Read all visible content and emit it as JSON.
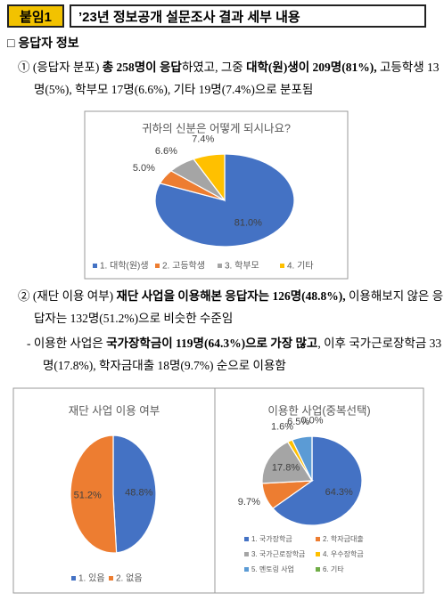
{
  "header": {
    "badge": "붙임1",
    "title": "’23년 정보공개 설문조사 결과 세부 내용"
  },
  "section": "□ 응답자 정보",
  "paragraphs": [
    [
      {
        "text": "① (응답자 분포) "
      },
      {
        "text": "총 258명이 응답",
        "bold": true
      },
      {
        "text": "하였고, 그중 "
      },
      {
        "text": "대학(원)생이 209명(81%),",
        "bold": true
      },
      {
        "text": " 고등학생 13명(5%), 학부모 17명(6.6%), 기타 19명(7.4%)으로 분포됨"
      }
    ],
    [
      {
        "text": "② (재단 이용 여부) "
      },
      {
        "text": "재단 사업을 이용해본 응답자는 126명(48.8%),",
        "bold": true
      },
      {
        "text": " 이용해보지 않은 응답자는 132명(51.2%)으로 비슷한 수준임"
      }
    ],
    [
      {
        "text": "- 이용한 사업은 "
      },
      {
        "text": "국가장학금이 119명(64.3%)으로 가장 많고",
        "bold": true
      },
      {
        "text": ", 이후 국가근로장학금 33명(17.8%), 학자금대출 18명(9.7%) 순으로 이용함"
      }
    ]
  ],
  "chart_data": [
    {
      "type": "pie",
      "title": "귀하의 신분은 어떻게 되시나요?",
      "categories": [
        "1. 대학(원)생",
        "2. 고등학생",
        "3. 학부모",
        "4. 기타"
      ],
      "values": [
        81.0,
        5.0,
        6.6,
        7.4
      ],
      "value_labels": [
        "81.0%",
        "5.0%",
        "6.6%",
        "7.4%"
      ],
      "colors": [
        "#4472c4",
        "#ed7d31",
        "#a5a5a5",
        "#ffc000"
      ]
    },
    {
      "type": "pie",
      "title": "재단 사업 이용 여부",
      "categories": [
        "1. 있음",
        "2. 없음"
      ],
      "values": [
        48.8,
        51.2
      ],
      "value_labels": [
        "48.8%",
        "51.2%"
      ],
      "colors": [
        "#4472c4",
        "#ed7d31"
      ]
    },
    {
      "type": "pie",
      "title": "이용한 사업(중복선택)",
      "categories": [
        "1. 국가장학금",
        "2. 학자금대출",
        "3. 국가근로장학금",
        "4. 우수장학금",
        "5. 멘토링 사업",
        "6. 기타"
      ],
      "values": [
        64.3,
        9.7,
        17.8,
        1.6,
        6.5,
        0.0
      ],
      "value_labels": [
        "64.3%",
        "9.7%",
        "17.8%",
        "1.6%",
        "6.5%",
        "0.0%"
      ],
      "colors": [
        "#4472c4",
        "#ed7d31",
        "#a5a5a5",
        "#ffc000",
        "#5b9bd5",
        "#70ad47"
      ]
    }
  ]
}
